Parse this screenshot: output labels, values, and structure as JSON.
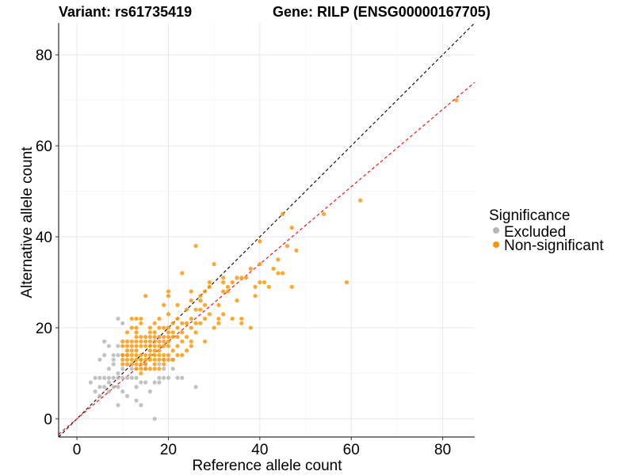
{
  "chart_data": {
    "type": "scatter",
    "title_left": "Variant: rs61735419",
    "title_right": "Gene: RILP (ENSG00000167705)",
    "xlabel": "Reference allele count",
    "ylabel": "Alternative allele count",
    "xlim": [
      -4,
      87
    ],
    "ylim": [
      -4,
      87
    ],
    "xticks": [
      0,
      20,
      40,
      60,
      80
    ],
    "yticks": [
      0,
      20,
      40,
      60,
      80
    ],
    "minor_grid": [
      10,
      30,
      50,
      70
    ],
    "grid": true,
    "legend": {
      "title": "Significance",
      "position": "right",
      "entries": [
        {
          "label": "Excluded",
          "color": "#b5b5b5"
        },
        {
          "label": "Non-significant",
          "color": "#ff9400"
        }
      ]
    },
    "reference_lines": [
      {
        "name": "identity",
        "slope": 1.0,
        "intercept": 0,
        "color": "#000000",
        "dash": true
      },
      {
        "name": "fit",
        "slope": 0.85,
        "intercept": 0,
        "color": "#ff0000",
        "dash": true
      }
    ],
    "series": [
      {
        "name": "Excluded",
        "color": "#b5b5b5",
        "points": [
          [
            3,
            8
          ],
          [
            4,
            6
          ],
          [
            4,
            9
          ],
          [
            5,
            5
          ],
          [
            5,
            7
          ],
          [
            5,
            9
          ],
          [
            5,
            13
          ],
          [
            6,
            7
          ],
          [
            6,
            9
          ],
          [
            6,
            14
          ],
          [
            6,
            17
          ],
          [
            7,
            6
          ],
          [
            7,
            8
          ],
          [
            7,
            9
          ],
          [
            7,
            11
          ],
          [
            7,
            16
          ],
          [
            8,
            7
          ],
          [
            8,
            9
          ],
          [
            8,
            12
          ],
          [
            8,
            13
          ],
          [
            8,
            14
          ],
          [
            9,
            3
          ],
          [
            9,
            7
          ],
          [
            9,
            9
          ],
          [
            9,
            10
          ],
          [
            9,
            14
          ],
          [
            9,
            16
          ],
          [
            9,
            22
          ],
          [
            10,
            6
          ],
          [
            10,
            9
          ],
          [
            10,
            11
          ],
          [
            10,
            14
          ],
          [
            10,
            21
          ],
          [
            11,
            5
          ],
          [
            11,
            9
          ],
          [
            11,
            14
          ],
          [
            12,
            9
          ],
          [
            12,
            11
          ],
          [
            13,
            4
          ],
          [
            13,
            7
          ],
          [
            13,
            9
          ],
          [
            14,
            3
          ],
          [
            14,
            8
          ],
          [
            14,
            13
          ],
          [
            15,
            8
          ],
          [
            15,
            11
          ],
          [
            15,
            12
          ],
          [
            16,
            6
          ],
          [
            17,
            0
          ],
          [
            17,
            8
          ],
          [
            18,
            8
          ],
          [
            18,
            9
          ],
          [
            18,
            12
          ],
          [
            19,
            9
          ],
          [
            19,
            11
          ],
          [
            19,
            13
          ],
          [
            20,
            9
          ],
          [
            21,
            11
          ],
          [
            21,
            13
          ],
          [
            22,
            9
          ],
          [
            23,
            9
          ],
          [
            26,
            7
          ]
        ]
      },
      {
        "name": "Non-significant",
        "color": "#ff9400",
        "points": [
          [
            10,
            12
          ],
          [
            10,
            13
          ],
          [
            10,
            14
          ],
          [
            10,
            16
          ],
          [
            10,
            17
          ],
          [
            11,
            12
          ],
          [
            11,
            13
          ],
          [
            11,
            14
          ],
          [
            11,
            15
          ],
          [
            11,
            16
          ],
          [
            11,
            17
          ],
          [
            11,
            19
          ],
          [
            12,
            12
          ],
          [
            12,
            13
          ],
          [
            12,
            14
          ],
          [
            12,
            15
          ],
          [
            12,
            16
          ],
          [
            12,
            17
          ],
          [
            12,
            20
          ],
          [
            12,
            22
          ],
          [
            13,
            11
          ],
          [
            13,
            12
          ],
          [
            13,
            13
          ],
          [
            13,
            14
          ],
          [
            13,
            15
          ],
          [
            13,
            16
          ],
          [
            13,
            17
          ],
          [
            13,
            18
          ],
          [
            13,
            19
          ],
          [
            13,
            20
          ],
          [
            13,
            22
          ],
          [
            14,
            10
          ],
          [
            14,
            11
          ],
          [
            14,
            12
          ],
          [
            14,
            13
          ],
          [
            14,
            14
          ],
          [
            14,
            16
          ],
          [
            14,
            17
          ],
          [
            14,
            18
          ],
          [
            14,
            21
          ],
          [
            14,
            22
          ],
          [
            15,
            11
          ],
          [
            15,
            12
          ],
          [
            15,
            13
          ],
          [
            15,
            14
          ],
          [
            15,
            16
          ],
          [
            15,
            17
          ],
          [
            15,
            18
          ],
          [
            15,
            27
          ],
          [
            16,
            11
          ],
          [
            16,
            13
          ],
          [
            16,
            14
          ],
          [
            16,
            15
          ],
          [
            16,
            16
          ],
          [
            16,
            17
          ],
          [
            16,
            18
          ],
          [
            16,
            19
          ],
          [
            16,
            20
          ],
          [
            17,
            11
          ],
          [
            17,
            12
          ],
          [
            17,
            13
          ],
          [
            17,
            14
          ],
          [
            17,
            15
          ],
          [
            17,
            16
          ],
          [
            17,
            17
          ],
          [
            17,
            18
          ],
          [
            17,
            19
          ],
          [
            17,
            21
          ],
          [
            18,
            11
          ],
          [
            18,
            13
          ],
          [
            18,
            14
          ],
          [
            18,
            15
          ],
          [
            18,
            16
          ],
          [
            18,
            17
          ],
          [
            18,
            18
          ],
          [
            18,
            20
          ],
          [
            18,
            22
          ],
          [
            19,
            12
          ],
          [
            19,
            13
          ],
          [
            19,
            14
          ],
          [
            19,
            16
          ],
          [
            19,
            17
          ],
          [
            19,
            18
          ],
          [
            19,
            20
          ],
          [
            19,
            25
          ],
          [
            20,
            13
          ],
          [
            20,
            14
          ],
          [
            20,
            16
          ],
          [
            20,
            17
          ],
          [
            20,
            18
          ],
          [
            20,
            19
          ],
          [
            20,
            20
          ],
          [
            20,
            23
          ],
          [
            20,
            27
          ],
          [
            20,
            28
          ],
          [
            21,
            13
          ],
          [
            21,
            15
          ],
          [
            21,
            18
          ],
          [
            21,
            19
          ],
          [
            21,
            21
          ],
          [
            22,
            14
          ],
          [
            22,
            16
          ],
          [
            22,
            18
          ],
          [
            22,
            20
          ],
          [
            22,
            22
          ],
          [
            22,
            25
          ],
          [
            23,
            14
          ],
          [
            23,
            17
          ],
          [
            23,
            19
          ],
          [
            23,
            21
          ],
          [
            23,
            32
          ],
          [
            24,
            15
          ],
          [
            24,
            18
          ],
          [
            24,
            21
          ],
          [
            24,
            24
          ],
          [
            25,
            16
          ],
          [
            25,
            17
          ],
          [
            25,
            20
          ],
          [
            25,
            22
          ],
          [
            25,
            26
          ],
          [
            25,
            28
          ],
          [
            26,
            19
          ],
          [
            26,
            21
          ],
          [
            26,
            24
          ],
          [
            26,
            38
          ],
          [
            27,
            21
          ],
          [
            27,
            24
          ],
          [
            27,
            26
          ],
          [
            27,
            27
          ],
          [
            28,
            17
          ],
          [
            28,
            22
          ],
          [
            28,
            25
          ],
          [
            28,
            28
          ],
          [
            29,
            23
          ],
          [
            29,
            29
          ],
          [
            29,
            30
          ],
          [
            30,
            20
          ],
          [
            30,
            34
          ],
          [
            31,
            21
          ],
          [
            31,
            22
          ],
          [
            31,
            25
          ],
          [
            32,
            23
          ],
          [
            32,
            28
          ],
          [
            32,
            30
          ],
          [
            32,
            31
          ],
          [
            33,
            28
          ],
          [
            33,
            29
          ],
          [
            34,
            30
          ],
          [
            34,
            22
          ],
          [
            35,
            26
          ],
          [
            35,
            31
          ],
          [
            36,
            21
          ],
          [
            36,
            22
          ],
          [
            36,
            31
          ],
          [
            37,
            31
          ],
          [
            38,
            20
          ],
          [
            38,
            33
          ],
          [
            39,
            27
          ],
          [
            39,
            29
          ],
          [
            40,
            30
          ],
          [
            40,
            34
          ],
          [
            40,
            39
          ],
          [
            41,
            30
          ],
          [
            42,
            29
          ],
          [
            43,
            33
          ],
          [
            44,
            32
          ],
          [
            44,
            35
          ],
          [
            45,
            32
          ],
          [
            45,
            45
          ],
          [
            46,
            38
          ],
          [
            47,
            29
          ],
          [
            47,
            42
          ],
          [
            48,
            37
          ],
          [
            54,
            45
          ],
          [
            59,
            30
          ],
          [
            62,
            48
          ],
          [
            83,
            70
          ]
        ]
      }
    ]
  }
}
